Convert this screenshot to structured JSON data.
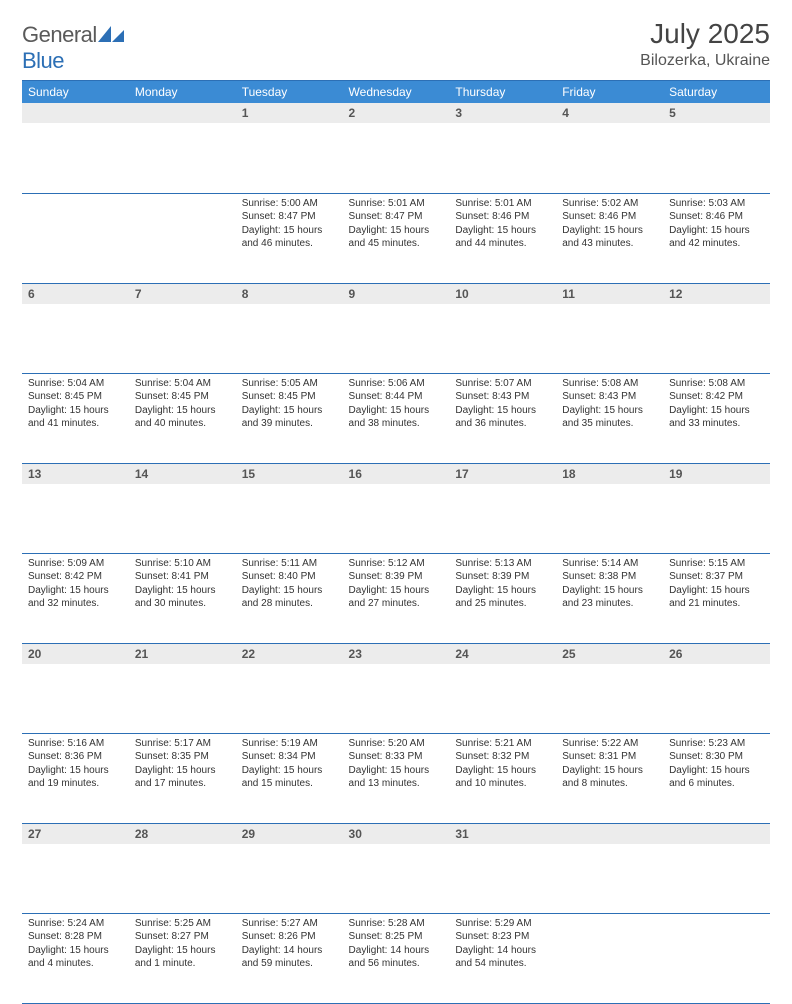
{
  "logo": {
    "prefix": "General",
    "suffix": "Blue"
  },
  "title": "July 2025",
  "location": "Bilozerka, Ukraine",
  "colors": {
    "header_bg": "#3b8bd4",
    "border": "#2c6fb5",
    "daynum_bg": "#ececec",
    "text": "#333333"
  },
  "day_headers": [
    "Sunday",
    "Monday",
    "Tuesday",
    "Wednesday",
    "Thursday",
    "Friday",
    "Saturday"
  ],
  "weeks": [
    [
      null,
      null,
      {
        "n": "1",
        "sr": "5:00 AM",
        "ss": "8:47 PM",
        "dl": "15 hours and 46 minutes."
      },
      {
        "n": "2",
        "sr": "5:01 AM",
        "ss": "8:47 PM",
        "dl": "15 hours and 45 minutes."
      },
      {
        "n": "3",
        "sr": "5:01 AM",
        "ss": "8:46 PM",
        "dl": "15 hours and 44 minutes."
      },
      {
        "n": "4",
        "sr": "5:02 AM",
        "ss": "8:46 PM",
        "dl": "15 hours and 43 minutes."
      },
      {
        "n": "5",
        "sr": "5:03 AM",
        "ss": "8:46 PM",
        "dl": "15 hours and 42 minutes."
      }
    ],
    [
      {
        "n": "6",
        "sr": "5:04 AM",
        "ss": "8:45 PM",
        "dl": "15 hours and 41 minutes."
      },
      {
        "n": "7",
        "sr": "5:04 AM",
        "ss": "8:45 PM",
        "dl": "15 hours and 40 minutes."
      },
      {
        "n": "8",
        "sr": "5:05 AM",
        "ss": "8:45 PM",
        "dl": "15 hours and 39 minutes."
      },
      {
        "n": "9",
        "sr": "5:06 AM",
        "ss": "8:44 PM",
        "dl": "15 hours and 38 minutes."
      },
      {
        "n": "10",
        "sr": "5:07 AM",
        "ss": "8:43 PM",
        "dl": "15 hours and 36 minutes."
      },
      {
        "n": "11",
        "sr": "5:08 AM",
        "ss": "8:43 PM",
        "dl": "15 hours and 35 minutes."
      },
      {
        "n": "12",
        "sr": "5:08 AM",
        "ss": "8:42 PM",
        "dl": "15 hours and 33 minutes."
      }
    ],
    [
      {
        "n": "13",
        "sr": "5:09 AM",
        "ss": "8:42 PM",
        "dl": "15 hours and 32 minutes."
      },
      {
        "n": "14",
        "sr": "5:10 AM",
        "ss": "8:41 PM",
        "dl": "15 hours and 30 minutes."
      },
      {
        "n": "15",
        "sr": "5:11 AM",
        "ss": "8:40 PM",
        "dl": "15 hours and 28 minutes."
      },
      {
        "n": "16",
        "sr": "5:12 AM",
        "ss": "8:39 PM",
        "dl": "15 hours and 27 minutes."
      },
      {
        "n": "17",
        "sr": "5:13 AM",
        "ss": "8:39 PM",
        "dl": "15 hours and 25 minutes."
      },
      {
        "n": "18",
        "sr": "5:14 AM",
        "ss": "8:38 PM",
        "dl": "15 hours and 23 minutes."
      },
      {
        "n": "19",
        "sr": "5:15 AM",
        "ss": "8:37 PM",
        "dl": "15 hours and 21 minutes."
      }
    ],
    [
      {
        "n": "20",
        "sr": "5:16 AM",
        "ss": "8:36 PM",
        "dl": "15 hours and 19 minutes."
      },
      {
        "n": "21",
        "sr": "5:17 AM",
        "ss": "8:35 PM",
        "dl": "15 hours and 17 minutes."
      },
      {
        "n": "22",
        "sr": "5:19 AM",
        "ss": "8:34 PM",
        "dl": "15 hours and 15 minutes."
      },
      {
        "n": "23",
        "sr": "5:20 AM",
        "ss": "8:33 PM",
        "dl": "15 hours and 13 minutes."
      },
      {
        "n": "24",
        "sr": "5:21 AM",
        "ss": "8:32 PM",
        "dl": "15 hours and 10 minutes."
      },
      {
        "n": "25",
        "sr": "5:22 AM",
        "ss": "8:31 PM",
        "dl": "15 hours and 8 minutes."
      },
      {
        "n": "26",
        "sr": "5:23 AM",
        "ss": "8:30 PM",
        "dl": "15 hours and 6 minutes."
      }
    ],
    [
      {
        "n": "27",
        "sr": "5:24 AM",
        "ss": "8:28 PM",
        "dl": "15 hours and 4 minutes."
      },
      {
        "n": "28",
        "sr": "5:25 AM",
        "ss": "8:27 PM",
        "dl": "15 hours and 1 minute."
      },
      {
        "n": "29",
        "sr": "5:27 AM",
        "ss": "8:26 PM",
        "dl": "14 hours and 59 minutes."
      },
      {
        "n": "30",
        "sr": "5:28 AM",
        "ss": "8:25 PM",
        "dl": "14 hours and 56 minutes."
      },
      {
        "n": "31",
        "sr": "5:29 AM",
        "ss": "8:23 PM",
        "dl": "14 hours and 54 minutes."
      },
      null,
      null
    ]
  ],
  "labels": {
    "sunrise": "Sunrise:",
    "sunset": "Sunset:",
    "daylight": "Daylight:"
  }
}
